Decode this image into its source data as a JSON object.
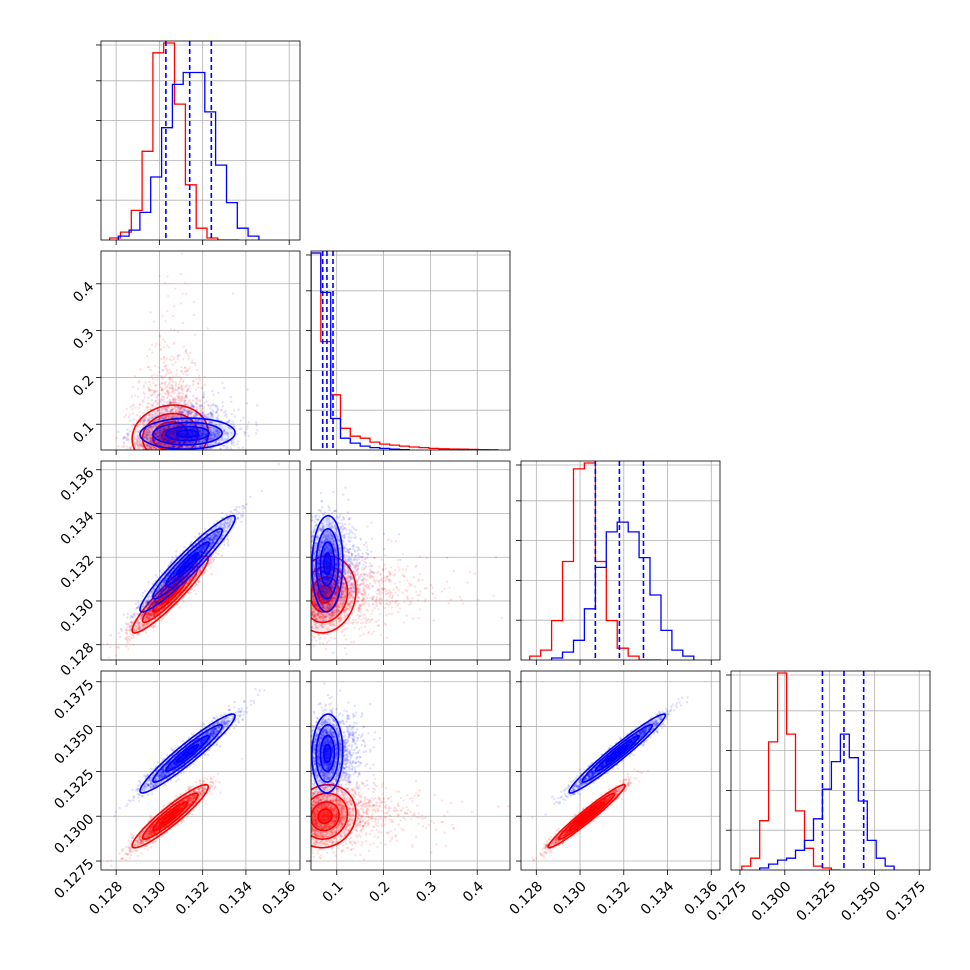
{
  "chart_data": {
    "type": "corner",
    "params": [
      {
        "ticks": [
          0.128,
          0.13,
          0.132,
          0.134,
          0.136
        ],
        "labels": [
          "0.128",
          "0.130",
          "0.132",
          "0.134",
          "0.136"
        ],
        "range": [
          0.1273,
          0.1365
        ]
      },
      {
        "ticks": [
          0.1,
          0.2,
          0.3,
          0.4
        ],
        "labels": [
          "0.1",
          "0.2",
          "0.3",
          "0.4"
        ],
        "range": [
          0.045,
          0.47
        ]
      },
      {
        "ticks": [
          0.128,
          0.13,
          0.132,
          0.134,
          0.136
        ],
        "labels": [
          "0.128",
          "0.130",
          "0.132",
          "0.134",
          "0.136"
        ],
        "range": [
          0.1273,
          0.1364
        ]
      },
      {
        "ticks": [
          0.1275,
          0.13,
          0.1325,
          0.135,
          0.1375
        ],
        "labels": [
          "0.1275",
          "0.1300",
          "0.1325",
          "0.1350",
          "0.1375"
        ],
        "range": [
          0.127,
          0.1381
        ]
      }
    ],
    "grid": true,
    "series": [
      {
        "color": "#ff0000",
        "marginals": [
          {
            "edges": [
              0.1277,
              0.1282,
              0.1287,
              0.1292,
              0.1297,
              0.1302,
              0.1307,
              0.1312,
              0.1317,
              0.1322,
              0.1327,
              0.1332,
              0.1337
            ],
            "values": [
              0.01,
              0.04,
              0.15,
              0.45,
              0.95,
              1.0,
              0.69,
              0.28,
              0.06,
              0.01,
              0.0,
              0.0
            ]
          },
          {
            "edges": [
              0.045,
              0.066,
              0.087,
              0.108,
              0.129,
              0.15,
              0.171,
              0.192,
              0.213,
              0.234,
              0.255,
              0.276,
              0.297,
              0.318,
              0.339,
              0.36,
              0.381,
              0.402,
              0.423,
              0.444
            ],
            "values": [
              1.0,
              0.55,
              0.28,
              0.11,
              0.07,
              0.06,
              0.04,
              0.03,
              0.025,
              0.02,
              0.015,
              0.012,
              0.008,
              0.006,
              0.005,
              0.004,
              0.003,
              0.002,
              0.001
            ]
          },
          {
            "edges": [
              0.1277,
              0.1282,
              0.1287,
              0.1292,
              0.1297,
              0.1302,
              0.1307,
              0.1312,
              0.1317,
              0.1322,
              0.1327,
              0.1332,
              0.1337
            ],
            "values": [
              0.02,
              0.05,
              0.2,
              0.5,
              0.97,
              1.0,
              0.5,
              0.2,
              0.06,
              0.02,
              0.0,
              0.0
            ]
          },
          {
            "edges": [
              0.1276,
              0.1281,
              0.1286,
              0.1291,
              0.1296,
              0.1301,
              0.1306,
              0.1311,
              0.1316,
              0.1321,
              0.1326,
              0.1331
            ],
            "values": [
              0.02,
              0.06,
              0.25,
              0.65,
              1.0,
              0.69,
              0.3,
              0.11,
              0.02,
              0.01,
              0.0
            ]
          }
        ],
        "means": [
          0.1305,
          0.075,
          0.1303,
          0.13
        ],
        "sigmas": [
          0.0008,
          0.03,
          0.0008,
          0.0008
        ],
        "correlations": [
          [
            1,
            0.1,
            0.93,
            0.93
          ],
          [
            0.1,
            1,
            0.1,
            0.1
          ],
          [
            0.93,
            0.1,
            1,
            0.97
          ],
          [
            0.93,
            0.1,
            0.97,
            1
          ]
        ]
      },
      {
        "color": "#0000ff",
        "marginals": [
          {
            "edges": [
              0.1281,
              0.1286,
              0.1291,
              0.1296,
              0.1301,
              0.1306,
              0.1311,
              0.1316,
              0.1321,
              0.1326,
              0.1331,
              0.1336,
              0.1341,
              0.1346
            ],
            "values": [
              0.02,
              0.05,
              0.14,
              0.32,
              0.57,
              0.79,
              0.85,
              0.85,
              0.65,
              0.38,
              0.19,
              0.06,
              0.02
            ]
          },
          {
            "edges": [
              0.045,
              0.066,
              0.087,
              0.108,
              0.129,
              0.15,
              0.171,
              0.192,
              0.213,
              0.234,
              0.255
            ],
            "values": [
              1.0,
              0.8,
              0.16,
              0.06,
              0.035,
              0.02,
              0.012,
              0.008,
              0.004,
              0.002
            ]
          },
          {
            "edges": [
              0.1287,
              0.1292,
              0.1297,
              0.1302,
              0.1307,
              0.1312,
              0.1317,
              0.1322,
              0.1327,
              0.1332,
              0.1337,
              0.1342,
              0.1347,
              0.1352
            ],
            "values": [
              0.01,
              0.04,
              0.1,
              0.26,
              0.47,
              0.65,
              0.7,
              0.65,
              0.52,
              0.33,
              0.15,
              0.05,
              0.02
            ]
          },
          {
            "edges": [
              0.1286,
              0.1291,
              0.1296,
              0.1301,
              0.1306,
              0.1311,
              0.1316,
              0.1321,
              0.1326,
              0.1331,
              0.1336,
              0.1341,
              0.1346,
              0.1351,
              0.1356,
              0.1361
            ],
            "values": [
              0.01,
              0.03,
              0.05,
              0.06,
              0.1,
              0.15,
              0.26,
              0.41,
              0.55,
              0.69,
              0.57,
              0.35,
              0.15,
              0.06,
              0.02
            ]
          }
        ],
        "means": [
          0.1313,
          0.08,
          0.1317,
          0.1335
        ],
        "sigmas": [
          0.001,
          0.015,
          0.001,
          0.001
        ],
        "correlations": [
          [
            1,
            0.05,
            0.95,
            0.95
          ],
          [
            0.05,
            1,
            0.05,
            0.05
          ],
          [
            0.95,
            0.05,
            1,
            0.97
          ],
          [
            0.95,
            0.05,
            0.97,
            1
          ]
        ],
        "quantiles": [
          [
            0.1303,
            0.1314,
            0.1324
          ],
          [
            0.07,
            0.079,
            0.092
          ],
          [
            0.1307,
            0.1318,
            0.1329
          ],
          [
            0.1321,
            0.1333,
            0.1344
          ]
        ]
      }
    ]
  }
}
